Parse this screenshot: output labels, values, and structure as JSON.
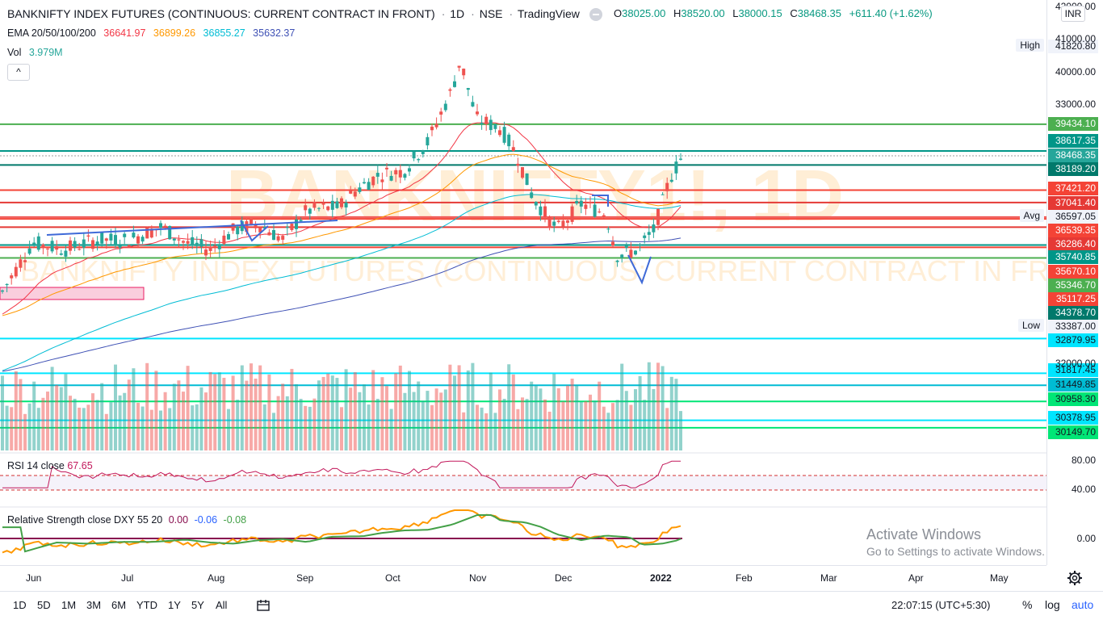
{
  "legend": {
    "symbol_title": "BANKNIFTY INDEX FUTURES (CONTINUOUS: CURRENT CONTRACT IN FRONT)",
    "interval": "1D",
    "exchange": "NSE",
    "source": "TradingView",
    "ohlc": {
      "o_label": "O",
      "o": "38025.00",
      "h_label": "H",
      "h": "38520.00",
      "l_label": "L",
      "l": "38000.15",
      "c_label": "C",
      "c": "38468.35",
      "change": "+611.40 (+1.62%)"
    },
    "ema_label": "EMA 20/50/100/200",
    "ema20": "36641.97",
    "ema50": "36899.26",
    "ema100": "36855.27",
    "ema200": "35632.37",
    "vol_label": "Vol",
    "vol_value": "3.979M",
    "collapse_glyph": "^"
  },
  "watermark": {
    "main": "BANKNIFTY1!, 1D",
    "sub": "BANKNIFTY INDEX FUTURES (CONTINUOUS: CURRENT CONTRACT IN FRONT)"
  },
  "currency": "INR",
  "price_scale": {
    "ticks": [
      "42000.00",
      "41000.00",
      "40000.00",
      "33000.00",
      "32000.00"
    ],
    "high_tag": "High",
    "low_tag": "Low",
    "avg_tag": "Avg",
    "levels": [
      {
        "value": "41820.80",
        "bg": "#f0f3fa",
        "fg": "#131722"
      },
      {
        "value": "39434.10",
        "bg": "#4caf50",
        "fg": "#ffffff"
      },
      {
        "value": "38617.35",
        "bg": "#009688",
        "fg": "#ffffff"
      },
      {
        "value": "38468.35",
        "bg": "#26a69a",
        "fg": "#ffffff"
      },
      {
        "value": "38189.20",
        "bg": "#00796b",
        "fg": "#ffffff"
      },
      {
        "value": "37421.20",
        "bg": "#f44336",
        "fg": "#ffffff"
      },
      {
        "value": "37041.40",
        "bg": "#e53935",
        "fg": "#ffffff"
      },
      {
        "value": "36597.05",
        "bg": "#f0f3fa",
        "fg": "#131722"
      },
      {
        "value": "36539.35",
        "bg": "#f44336",
        "fg": "#ffffff"
      },
      {
        "value": "36286.40",
        "bg": "#e53935",
        "fg": "#ffffff"
      },
      {
        "value": "35740.85",
        "bg": "#009688",
        "fg": "#ffffff"
      },
      {
        "value": "35670.10",
        "bg": "#f44336",
        "fg": "#ffffff"
      },
      {
        "value": "35346.70",
        "bg": "#4caf50",
        "fg": "#ffffff"
      },
      {
        "value": "35117.25",
        "bg": "#f44336",
        "fg": "#ffffff"
      },
      {
        "value": "34378.70",
        "bg": "#00796b",
        "fg": "#ffffff"
      },
      {
        "value": "33387.00",
        "bg": "#f0f3fa",
        "fg": "#131722"
      },
      {
        "value": "32879.95",
        "bg": "#00e5ff",
        "fg": "#131722"
      },
      {
        "value": "31817.45",
        "bg": "#00e5ff",
        "fg": "#131722"
      },
      {
        "value": "31449.85",
        "bg": "#00bcd4",
        "fg": "#131722"
      },
      {
        "value": "30958.30",
        "bg": "#00e676",
        "fg": "#131722"
      },
      {
        "value": "30378.95",
        "bg": "#00e5ff",
        "fg": "#131722"
      },
      {
        "value": "30149.70",
        "bg": "#00e676",
        "fg": "#131722"
      }
    ],
    "rsi_ticks": [
      "80.00",
      "40.00"
    ],
    "rs_tick": "0.00"
  },
  "rsi": {
    "label": "RSI 14 close",
    "value": "67.65",
    "color": "#c2185b"
  },
  "relative_strength": {
    "label": "Relative Strength close DXY 55 20",
    "v1": "0.00",
    "v2": "-0.06",
    "v3": "-0.08"
  },
  "time_axis": [
    "Jun",
    "Jul",
    "Aug",
    "Sep",
    "Oct",
    "Nov",
    "Dec",
    "2022",
    "Feb",
    "Mar",
    "Apr",
    "May"
  ],
  "ranges": [
    "1D",
    "5D",
    "1M",
    "3M",
    "6M",
    "YTD",
    "1Y",
    "5Y",
    "All"
  ],
  "clock": "22:07:15 (UTC+5:30)",
  "bottom_right": {
    "percent": "%",
    "log": "log",
    "auto": "auto"
  },
  "activate": {
    "title": "Activate Windows",
    "sub": "Go to Settings to activate Windows."
  },
  "colors": {
    "up": "#26a69a",
    "down": "#ef5350",
    "ema20": "#f23645",
    "ema50": "#ff9800",
    "ema100": "#00bcd4",
    "ema200": "#3f51b5"
  }
}
